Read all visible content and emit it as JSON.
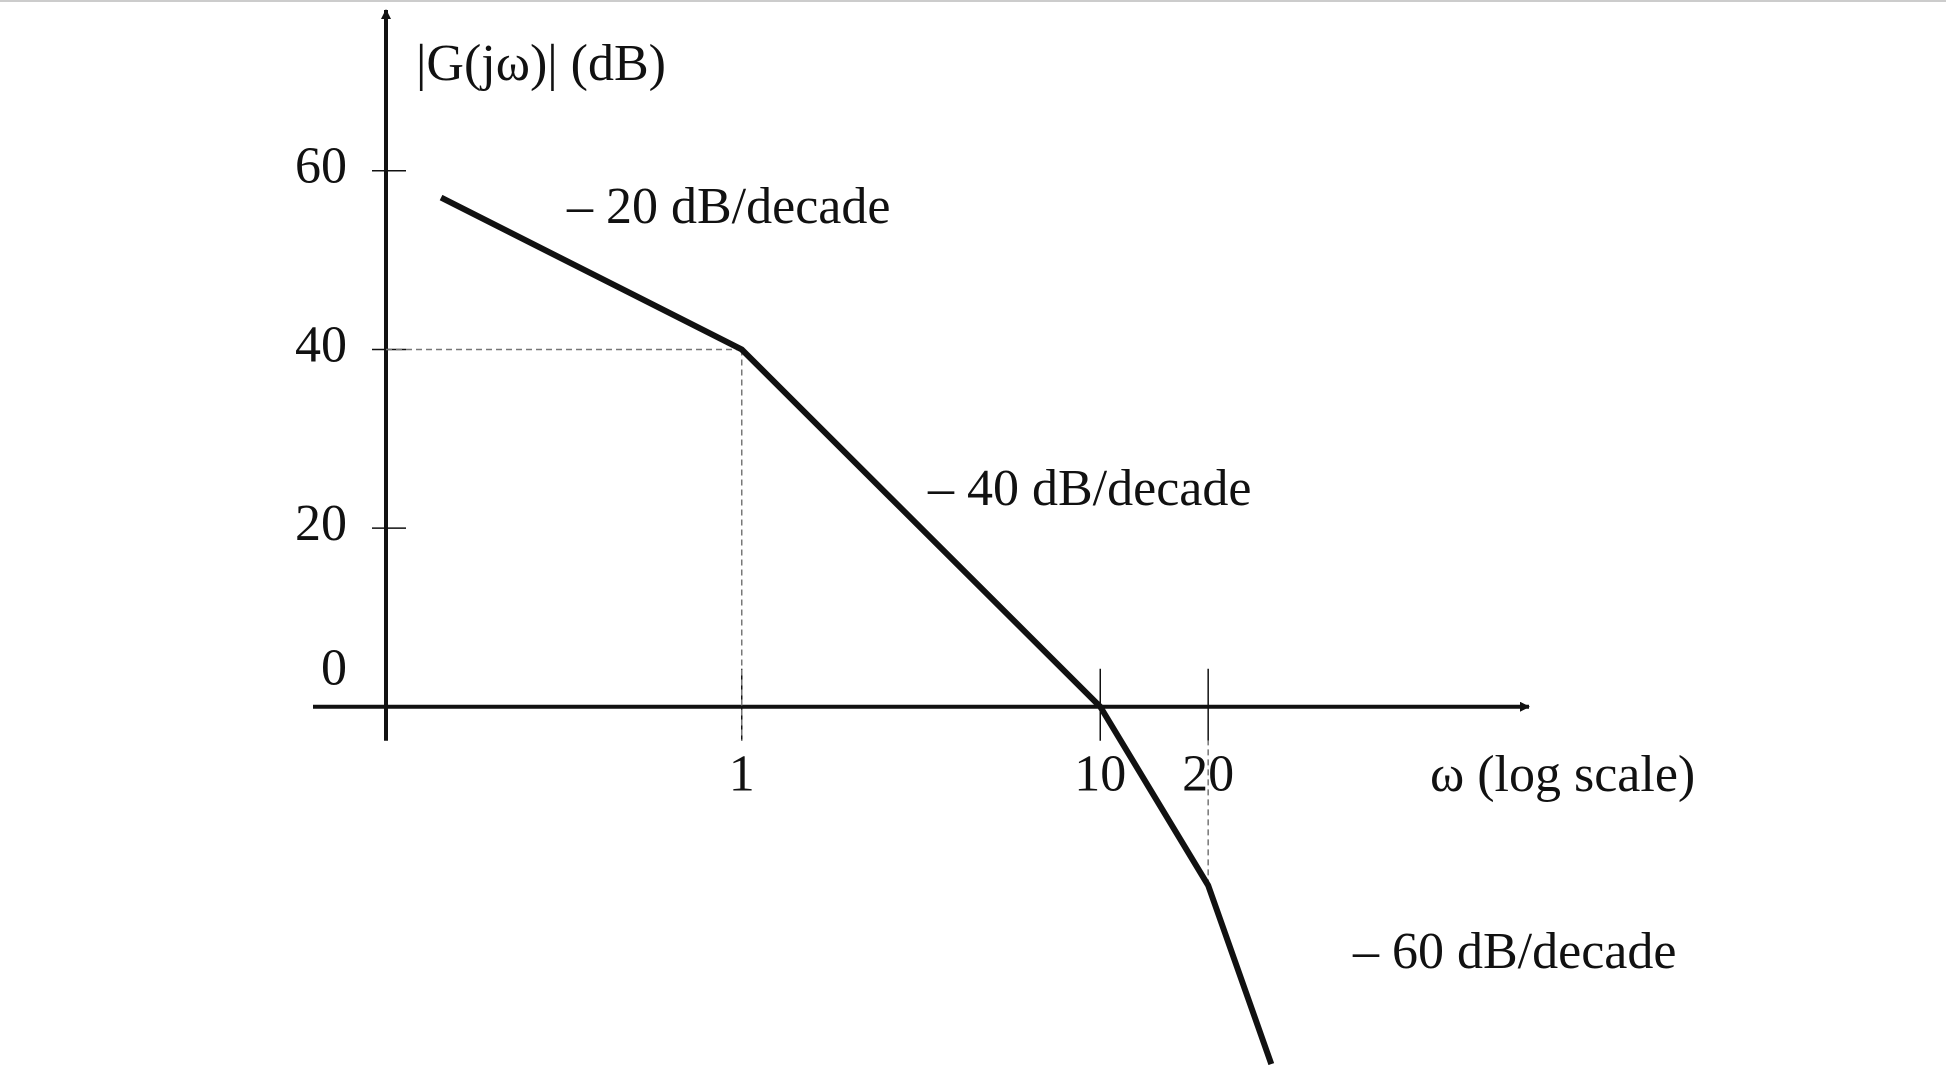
{
  "chart_data": {
    "type": "line",
    "x_label": "ω (log scale)",
    "y_label": "|G(jω)| (dB)",
    "x_log": true,
    "xlim": [
      0.0637,
      157
    ],
    "xticks": [
      1,
      10,
      20
    ],
    "ylim": [
      -41,
      78
    ],
    "yticks": [
      0,
      20,
      40,
      60
    ],
    "series": [
      {
        "color": "#111111",
        "x": [
          0.145,
          1,
          10,
          20,
          30
        ],
        "values": [
          57,
          40,
          0,
          -20,
          -40
        ]
      }
    ],
    "annotations": [
      {
        "text": "– 20 dB/decade"
      },
      {
        "text": "– 40 dB/decade"
      },
      {
        "text": "– 60 dB/decade"
      }
    ]
  }
}
